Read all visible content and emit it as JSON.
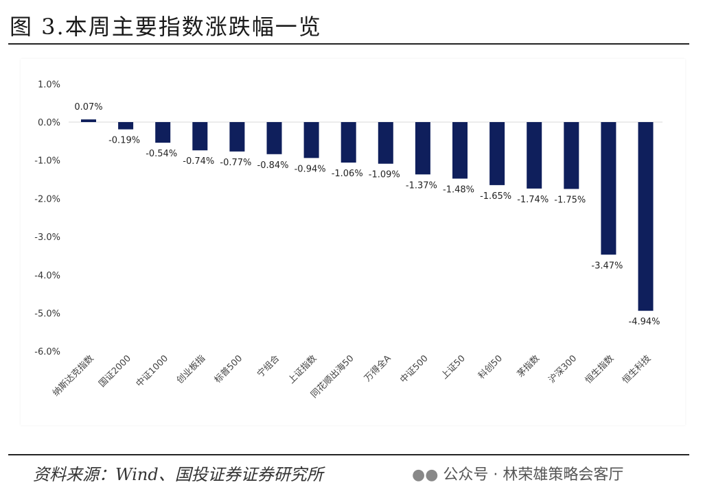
{
  "title": "图 3.本周主要指数涨跌幅一览",
  "source": "资料来源：Wind、国投证券证券研究所",
  "watermark": "公众号 · 林荣雄策略会客厅",
  "watermark_icon": "wechat-icon",
  "colors": {
    "bar": "#0f1f5c"
  },
  "chart_data": {
    "type": "bar",
    "title": "",
    "xlabel": "",
    "ylabel": "",
    "ylim": [
      -6.0,
      1.0
    ],
    "yticks": [
      "1.0%",
      "0.0%",
      "-1.0%",
      "-2.0%",
      "-3.0%",
      "-4.0%",
      "-5.0%",
      "-6.0%"
    ],
    "grid": false,
    "categories": [
      "纳斯达克指数",
      "国证2000",
      "中证1000",
      "创业板指",
      "标普500",
      "宁组合",
      "上证指数",
      "同花顺出海50",
      "万得全A",
      "中证500",
      "上证50",
      "科创50",
      "茅指数",
      "沪深300",
      "恒生指数",
      "恒生科技"
    ],
    "values": [
      0.07,
      -0.19,
      -0.54,
      -0.74,
      -0.77,
      -0.84,
      -0.94,
      -1.06,
      -1.09,
      -1.37,
      -1.48,
      -1.65,
      -1.74,
      -1.75,
      -3.47,
      -4.94
    ],
    "labels": [
      "0.07%",
      "-0.19%",
      "-0.54%",
      "-0.74%",
      "-0.77%",
      "-0.84%",
      "-0.94%",
      "-1.06%",
      "-1.09%",
      "-1.37%",
      "-1.48%",
      "-1.65%",
      "-1.74%",
      "-1.75%",
      "-3.47%",
      "-4.94%"
    ]
  }
}
